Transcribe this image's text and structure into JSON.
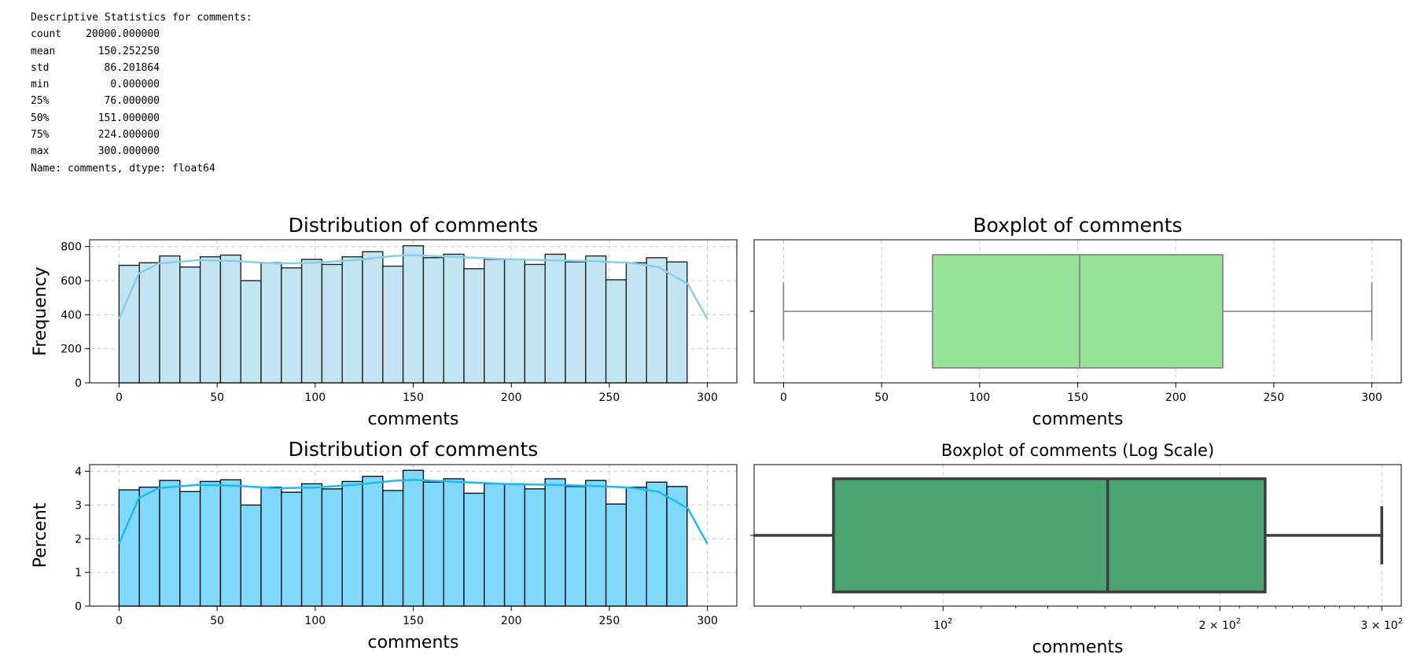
{
  "stats": {
    "header": "Descriptive Statistics for comments:",
    "rows": [
      {
        "key": "count",
        "value": "20000.000000"
      },
      {
        "key": "mean",
        "value": "150.252250"
      },
      {
        "key": "std",
        "value": "86.201864"
      },
      {
        "key": "min",
        "value": "0.000000"
      },
      {
        "key": "25%",
        "value": "76.000000"
      },
      {
        "key": "50%",
        "value": "151.000000"
      },
      {
        "key": "75%",
        "value": "224.000000"
      },
      {
        "key": "max",
        "value": "300.000000"
      }
    ],
    "footer": "Name: comments, dtype: float64"
  },
  "chart_data": [
    {
      "type": "bar",
      "subtype": "histogram",
      "title": "Distribution of comments",
      "xlabel": "comments",
      "ylabel": "Frequency",
      "bin_start": 0,
      "bin_width": 10.345,
      "values": [
        690,
        705,
        745,
        680,
        740,
        750,
        600,
        705,
        675,
        725,
        695,
        740,
        770,
        685,
        805,
        735,
        755,
        670,
        725,
        725,
        695,
        755,
        710,
        745,
        605,
        705,
        735,
        710
      ],
      "kde": [
        [
          0,
          375
        ],
        [
          10,
          640
        ],
        [
          20,
          700
        ],
        [
          40,
          720
        ],
        [
          60,
          715
        ],
        [
          80,
          700
        ],
        [
          100,
          705
        ],
        [
          120,
          720
        ],
        [
          140,
          745
        ],
        [
          150,
          750
        ],
        [
          160,
          745
        ],
        [
          180,
          735
        ],
        [
          200,
          725
        ],
        [
          220,
          720
        ],
        [
          240,
          715
        ],
        [
          260,
          705
        ],
        [
          275,
          680
        ],
        [
          290,
          580
        ],
        [
          300,
          375
        ]
      ],
      "xlim": [
        -15,
        315
      ],
      "ylim": [
        0,
        840
      ],
      "xticks": [
        0,
        50,
        100,
        150,
        200,
        250,
        300
      ],
      "yticks": [
        0,
        200,
        400,
        600,
        800
      ],
      "grid": true,
      "colors": {
        "bar": "#c3e5f2",
        "edge": "#222222",
        "kde": "#87ceeb"
      }
    },
    {
      "type": "boxplot",
      "title": "Boxplot of comments",
      "xlabel": "comments",
      "stats": {
        "min": 0,
        "q1": 76,
        "median": 151,
        "q3": 224,
        "max": 300
      },
      "xlim": [
        -15,
        315
      ],
      "xticks": [
        0,
        50,
        100,
        150,
        200,
        250,
        300
      ],
      "grid": true,
      "colors": {
        "box": "#98e398",
        "line": "#808080"
      }
    },
    {
      "type": "bar",
      "subtype": "histogram",
      "title": "Distribution of comments",
      "xlabel": "comments",
      "ylabel": "Percent",
      "bin_start": 0,
      "bin_width": 10.345,
      "values": [
        3.45,
        3.53,
        3.73,
        3.4,
        3.7,
        3.75,
        3.0,
        3.53,
        3.38,
        3.63,
        3.48,
        3.7,
        3.85,
        3.43,
        4.03,
        3.68,
        3.78,
        3.35,
        3.63,
        3.63,
        3.48,
        3.78,
        3.55,
        3.73,
        3.03,
        3.53,
        3.68,
        3.55
      ],
      "kde": [
        [
          0,
          1.85
        ],
        [
          10,
          3.2
        ],
        [
          20,
          3.5
        ],
        [
          40,
          3.6
        ],
        [
          60,
          3.57
        ],
        [
          80,
          3.5
        ],
        [
          100,
          3.52
        ],
        [
          120,
          3.6
        ],
        [
          140,
          3.72
        ],
        [
          150,
          3.75
        ],
        [
          160,
          3.72
        ],
        [
          180,
          3.67
        ],
        [
          200,
          3.62
        ],
        [
          220,
          3.6
        ],
        [
          240,
          3.57
        ],
        [
          260,
          3.52
        ],
        [
          275,
          3.4
        ],
        [
          290,
          2.9
        ],
        [
          300,
          1.85
        ]
      ],
      "xlim": [
        -15,
        315
      ],
      "ylim": [
        0,
        4.2
      ],
      "xticks": [
        0,
        50,
        100,
        150,
        200,
        250,
        300
      ],
      "yticks": [
        0,
        1,
        2,
        3,
        4
      ],
      "grid": true,
      "colors": {
        "bar": "#80d9fa",
        "edge": "#111111",
        "kde": "#1eb9ee"
      }
    },
    {
      "type": "boxplot",
      "scale": "log",
      "title": "Boxplot of comments (Log Scale)",
      "xlabel": "comments",
      "stats": {
        "whisker_low": 45,
        "q1": 76,
        "median": 151,
        "q3": 224,
        "max": 300
      },
      "xlim": [
        62.3,
        315
      ],
      "xticks": [
        100,
        200,
        300
      ],
      "xtick_labels": [
        [
          "10",
          "2"
        ],
        [
          "2 × 10",
          "2"
        ],
        [
          "3 × 10",
          "2"
        ]
      ],
      "grid": true,
      "colors": {
        "box": "#4ba372",
        "line": "#3d3d3d"
      }
    }
  ]
}
